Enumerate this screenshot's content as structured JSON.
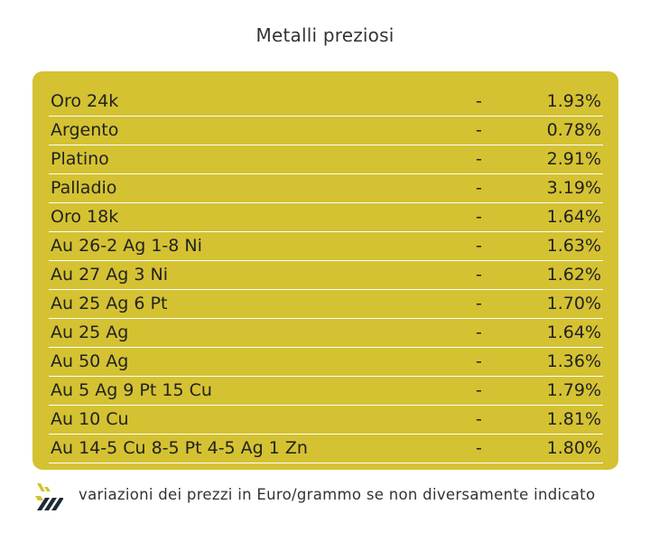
{
  "title": "Metalli preziosi",
  "colors": {
    "panel": "#d4c232",
    "row_divider": "#ffffff",
    "logo_yellow": "#d4c232",
    "logo_dark": "#1f2a33"
  },
  "rows": [
    {
      "name": "Oro 24k",
      "sep": "-",
      "value": "1.93%"
    },
    {
      "name": "Argento",
      "sep": "-",
      "value": "0.78%"
    },
    {
      "name": "Platino",
      "sep": "-",
      "value": "2.91%"
    },
    {
      "name": "Palladio",
      "sep": "-",
      "value": "3.19%"
    },
    {
      "name": "Oro 18k",
      "sep": "-",
      "value": "1.64%"
    },
    {
      "name": "Au 26-2 Ag 1-8 Ni",
      "sep": "-",
      "value": "1.63%"
    },
    {
      "name": "Au 27 Ag 3 Ni",
      "sep": "-",
      "value": "1.62%"
    },
    {
      "name": "Au 25 Ag 6 Pt",
      "sep": "-",
      "value": "1.70%"
    },
    {
      "name": "Au 25 Ag",
      "sep": "-",
      "value": "1.64%"
    },
    {
      "name": "Au 50 Ag",
      "sep": "-",
      "value": "1.36%"
    },
    {
      "name": "Au 5 Ag 9 Pt 15 Cu",
      "sep": "-",
      "value": "1.79%"
    },
    {
      "name": "Au 10 Cu",
      "sep": "-",
      "value": "1.81%"
    },
    {
      "name": "Au 14-5 Cu 8-5 Pt 4-5 Ag 1 Zn",
      "sep": "-",
      "value": "1.80%"
    }
  ],
  "footer": {
    "logo_icon": "stripes-logo-icon",
    "note": "variazioni dei prezzi in Euro/grammo se non diversamente indicato"
  }
}
